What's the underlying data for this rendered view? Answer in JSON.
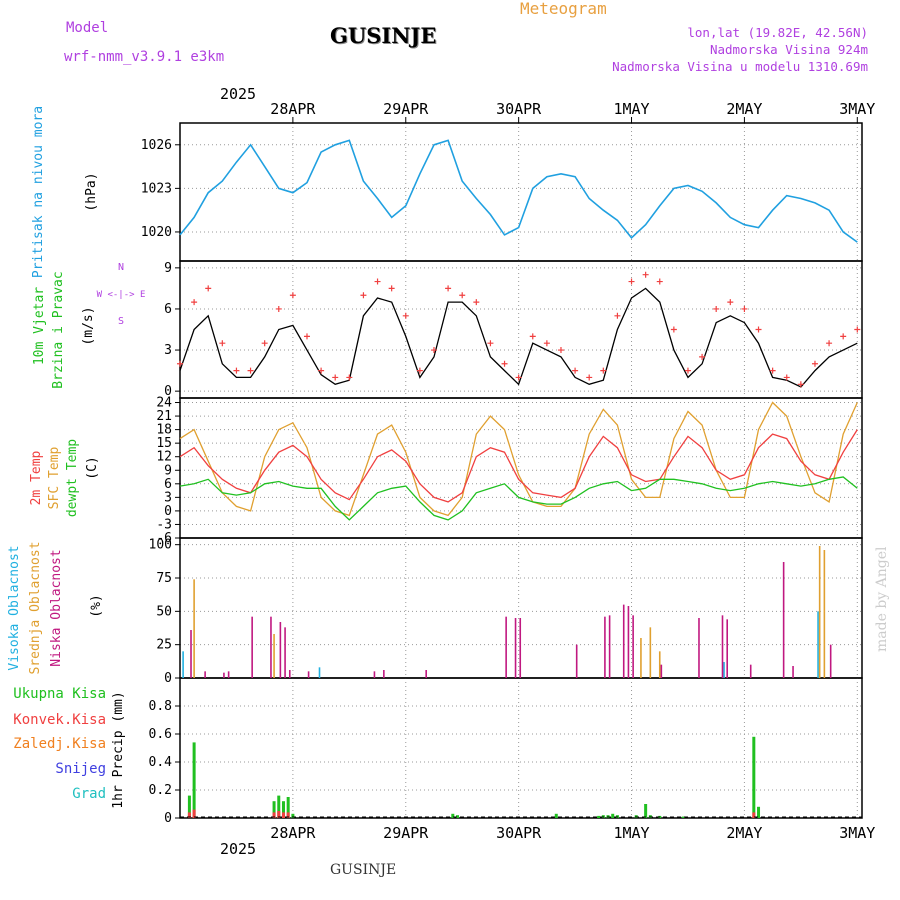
{
  "header": {
    "model_label": "Model",
    "model_name": "wrf-nmm_v3.9.1 e3km",
    "station": "GUSINJE",
    "title": "Meteogram",
    "lonlat": "lon,lat (19.82E, 42.56N)",
    "elevation": "Nadmorska Visina 924m",
    "model_elevation": "Nadmorska Visina u modelu 1310.69m"
  },
  "footer": {
    "station": "GUSINJE",
    "made_by": "made by Angel"
  },
  "colors": {
    "pressure": "#20a0e0",
    "temp2m": "#f04040",
    "sfc": "#e0a030",
    "dewpt": "#20c020",
    "high_cloud": "#20b0e0",
    "mid_cloud": "#e0a030",
    "low_cloud": "#c01880",
    "total_precip": "#20c020",
    "conv_precip": "#f04040",
    "frz_precip": "#f08020",
    "snow": "#4040e0",
    "hail": "#20c0c0",
    "wind_speed": "#000000",
    "gust": "#f04040"
  },
  "top_axis": {
    "year": "2025",
    "dates": [
      "28APR",
      "29APR",
      "30APR",
      "1MAY",
      "2MAY",
      "3MAY"
    ]
  },
  "bottom_axis": {
    "year": "2025",
    "dates": [
      "28APR",
      "29APR",
      "30APR",
      "1MAY",
      "2MAY",
      "3MAY"
    ]
  },
  "legend": {
    "pressure": [
      "Pritisak na nivou mora"
    ],
    "pressure_unit": "(hPa)",
    "wind": [
      "10m Vjetar",
      "Brzina i Pravac"
    ],
    "wind_unit": "(m/s)",
    "compass_ns": "N",
    "compass_s": "S",
    "compass_ew": "W <-|-> E",
    "temp": [
      {
        "text": "2m Temp",
        "series": "temp2m"
      },
      {
        "text": "SFC Temp",
        "series": "sfc"
      },
      {
        "text": "dewpt Temp",
        "series": "dewpt"
      }
    ],
    "temp_unit": "(C)",
    "cloud": [
      {
        "text": "Visoka Oblacnost",
        "series": "high_cloud"
      },
      {
        "text": "Srednja Oblacnost",
        "series": "mid_cloud"
      },
      {
        "text": "Niska Oblacnost",
        "series": "low_cloud"
      }
    ],
    "cloud_unit": "(%)",
    "precip": [
      {
        "text": "Ukupna Kisa",
        "series": "total_precip"
      },
      {
        "text": "Konvek.Kisa",
        "series": "conv_precip"
      },
      {
        "text": "Zaledj.Kisa",
        "series": "frz_precip"
      },
      {
        "text": "Snijeg",
        "series": "snow"
      },
      {
        "text": "Grad",
        "series": "hail"
      }
    ],
    "precip_unit": "1hr Precip (mm)"
  },
  "chart_data": [
    {
      "type": "line",
      "x_unit": "hours from 28APR 00UTC",
      "xlim": [
        -12,
        133
      ],
      "ylim": [
        1018,
        1027.5
      ],
      "yticks": [
        1020,
        1023,
        1026
      ],
      "ylabel": "(hPa)",
      "series": [
        {
          "name": "Pritisak na nivou mora",
          "x": [
            -12,
            -9,
            -6,
            -3,
            0,
            3,
            6,
            9,
            12,
            15,
            18,
            21,
            24,
            27,
            30,
            33,
            36,
            39,
            42,
            45,
            48,
            51,
            54,
            57,
            60,
            63,
            66,
            69,
            72,
            75,
            78,
            81,
            84,
            87,
            90,
            93,
            96,
            99,
            102,
            105,
            108,
            111,
            114,
            117,
            120,
            123,
            126,
            129,
            132
          ],
          "values": [
            1019.8,
            1021,
            1022.7,
            1023.5,
            1024.8,
            1026.0,
            1024.5,
            1023.0,
            1022.7,
            1023.4,
            1025.5,
            1026.0,
            1026.3,
            1023.5,
            1022.3,
            1021.0,
            1021.8,
            1024.0,
            1026.0,
            1026.3,
            1023.5,
            1022.3,
            1021.2,
            1019.8,
            1020.3,
            1023.0,
            1023.8,
            1024.0,
            1023.8,
            1022.3,
            1021.5,
            1020.8,
            1019.6,
            1020.5,
            1021.8,
            1023.0,
            1023.2,
            1022.8,
            1022.0,
            1021.0,
            1020.5,
            1020.3,
            1021.5,
            1022.5,
            1022.3,
            1022.0,
            1021.5,
            1020.0,
            1019.3
          ]
        }
      ]
    },
    {
      "type": "line",
      "x_unit": "hours from 28APR 00UTC",
      "xlim": [
        -12,
        133
      ],
      "ylim": [
        -0.5,
        9.5
      ],
      "yticks": [
        0,
        3,
        6,
        9
      ],
      "ylabel": "(m/s)",
      "series": [
        {
          "name": "wind speed",
          "x": [
            -12,
            -9,
            -6,
            -3,
            0,
            3,
            6,
            9,
            12,
            15,
            18,
            21,
            24,
            27,
            30,
            33,
            36,
            39,
            42,
            45,
            48,
            51,
            54,
            57,
            60,
            63,
            66,
            69,
            72,
            75,
            78,
            81,
            84,
            87,
            90,
            93,
            96,
            99,
            102,
            105,
            108,
            111,
            114,
            117,
            120,
            123,
            126,
            129,
            132
          ],
          "values": [
            1.5,
            4.5,
            5.5,
            2.0,
            1.0,
            1.0,
            2.5,
            4.5,
            4.8,
            3.0,
            1.2,
            0.5,
            0.8,
            5.5,
            6.8,
            6.5,
            4.0,
            1.0,
            2.5,
            6.5,
            6.5,
            5.5,
            2.5,
            1.5,
            0.5,
            3.5,
            3.0,
            2.5,
            1.0,
            0.5,
            0.8,
            4.5,
            6.8,
            7.5,
            6.5,
            3.0,
            1.0,
            2.0,
            5.0,
            5.5,
            5.0,
            3.5,
            1.0,
            0.8,
            0.3,
            1.5,
            2.5,
            3.0,
            3.5
          ]
        },
        {
          "name": "gust",
          "x": [
            -12,
            -9,
            -6,
            -3,
            0,
            3,
            6,
            9,
            12,
            15,
            18,
            21,
            24,
            27,
            30,
            33,
            36,
            39,
            42,
            45,
            48,
            51,
            54,
            57,
            60,
            63,
            66,
            69,
            72,
            75,
            78,
            81,
            84,
            87,
            90,
            93,
            96,
            99,
            102,
            105,
            108,
            111,
            114,
            117,
            120,
            123,
            126,
            129,
            132
          ],
          "values": [
            2.0,
            6.5,
            7.5,
            3.5,
            1.5,
            1.5,
            3.5,
            6.0,
            7.0,
            4.0,
            1.5,
            1.0,
            1.0,
            7.0,
            8.0,
            7.5,
            5.5,
            1.5,
            3.0,
            7.5,
            7.0,
            6.5,
            3.5,
            2.0,
            1.0,
            4.0,
            3.5,
            3.0,
            1.5,
            1.0,
            1.5,
            5.5,
            8.0,
            8.5,
            8.0,
            4.5,
            1.5,
            2.5,
            6.0,
            6.5,
            6.0,
            4.5,
            1.5,
            1.0,
            0.5,
            2.0,
            3.5,
            4.0,
            4.5
          ]
        }
      ]
    },
    {
      "type": "line",
      "x_unit": "hours from 28APR 00UTC",
      "xlim": [
        -12,
        133
      ],
      "ylim": [
        -6,
        25
      ],
      "yticks": [
        -6,
        -3,
        0,
        3,
        6,
        9,
        12,
        15,
        18,
        21,
        24
      ],
      "ylabel": "(C)",
      "series": [
        {
          "name": "2m Temp",
          "x": [
            -12,
            -9,
            -6,
            -3,
            0,
            3,
            6,
            9,
            12,
            15,
            18,
            21,
            24,
            27,
            30,
            33,
            36,
            39,
            42,
            45,
            48,
            51,
            54,
            57,
            60,
            63,
            66,
            69,
            72,
            75,
            78,
            81,
            84,
            87,
            90,
            93,
            96,
            99,
            102,
            105,
            108,
            111,
            114,
            117,
            120,
            123,
            126,
            129,
            132
          ],
          "values": [
            12,
            14,
            10,
            7,
            5,
            4,
            9,
            13,
            14.5,
            12,
            7,
            4,
            2.5,
            7,
            12,
            13.5,
            11,
            6,
            3,
            2,
            4,
            12,
            14,
            13,
            7,
            4,
            3.5,
            3,
            5,
            12,
            16.5,
            14,
            8,
            6.5,
            7,
            12,
            16.5,
            14,
            9,
            7,
            8,
            14,
            17,
            16,
            11,
            8,
            7,
            13,
            18
          ]
        },
        {
          "name": "SFC Temp",
          "x": [
            -12,
            -9,
            -6,
            -3,
            0,
            3,
            6,
            9,
            12,
            15,
            18,
            21,
            24,
            27,
            30,
            33,
            36,
            39,
            42,
            45,
            48,
            51,
            54,
            57,
            60,
            63,
            66,
            69,
            72,
            75,
            78,
            81,
            84,
            87,
            90,
            93,
            96,
            99,
            102,
            105,
            108,
            111,
            114,
            117,
            120,
            123,
            126,
            129,
            132
          ],
          "values": [
            16,
            18,
            11,
            4,
            1,
            0,
            12,
            18,
            19.5,
            14,
            3,
            0,
            -1,
            8,
            17,
            19,
            13,
            3,
            0,
            -1,
            3,
            17,
            21,
            18,
            8,
            2,
            1,
            1,
            5,
            17,
            22.5,
            19,
            7,
            3,
            3,
            16,
            22,
            19,
            9,
            3,
            3,
            18,
            24,
            21,
            12,
            4,
            2,
            17,
            24
          ]
        },
        {
          "name": "dewpt Temp",
          "x": [
            -12,
            -9,
            -6,
            -3,
            0,
            3,
            6,
            9,
            12,
            15,
            18,
            21,
            24,
            27,
            30,
            33,
            36,
            39,
            42,
            45,
            48,
            51,
            54,
            57,
            60,
            63,
            66,
            69,
            72,
            75,
            78,
            81,
            84,
            87,
            90,
            93,
            96,
            99,
            102,
            105,
            108,
            111,
            114,
            117,
            120,
            123,
            126,
            129,
            132
          ],
          "values": [
            5.5,
            6,
            7,
            4,
            3.5,
            4,
            6,
            6.5,
            5.5,
            5,
            5,
            1,
            -2,
            1,
            4,
            5,
            5.5,
            2,
            -1,
            -2,
            0,
            4,
            5,
            6,
            3,
            2,
            1.5,
            1.5,
            3,
            5,
            6,
            6.5,
            4.5,
            5,
            7,
            7,
            6.5,
            6,
            5,
            4.5,
            5,
            6,
            6.5,
            6,
            5.5,
            6,
            7,
            7.5,
            5
          ]
        }
      ]
    },
    {
      "type": "bar",
      "x_unit": "hours from 28APR 00UTC",
      "xlim": [
        -12,
        133
      ],
      "ylim": [
        0,
        105
      ],
      "yticks": [
        0,
        25,
        50,
        75,
        100
      ],
      "ylabel": "(%)",
      "series": [
        {
          "name": "Visoka Oblacnost",
          "x": [
            -11,
            18,
            104,
            124
          ],
          "values": [
            20,
            8,
            12,
            50
          ]
        },
        {
          "name": "Srednja Oblacnost",
          "x": [
            -9,
            8,
            86,
            88,
            90,
            124,
            125
          ],
          "values": [
            74,
            33,
            30,
            38,
            20,
            99,
            96
          ]
        },
        {
          "name": "Niska Oblacnost",
          "x": [
            -10,
            -7,
            -3,
            -2,
            3,
            7,
            9,
            10,
            11,
            15,
            29,
            31,
            40,
            57,
            59,
            60,
            72,
            78,
            79,
            82,
            83,
            84,
            90,
            98,
            103,
            104,
            109,
            116,
            118,
            126
          ],
          "values": [
            36,
            5,
            4,
            5,
            46,
            46,
            42,
            38,
            6,
            5,
            5,
            6,
            6,
            46,
            45,
            45,
            25,
            46,
            47,
            55,
            54,
            47,
            10,
            45,
            47,
            44,
            10,
            87,
            9,
            25
          ]
        }
      ]
    },
    {
      "type": "bar",
      "x_unit": "hours from 28APR 00UTC",
      "xlim": [
        -12,
        133
      ],
      "ylim": [
        0,
        1.0
      ],
      "yticks": [
        0,
        0.2,
        0.4,
        0.6,
        0.8
      ],
      "ylabel": "1hr Precip (mm)",
      "series": [
        {
          "name": "Ukupna Kisa",
          "x": [
            -10,
            -9,
            8,
            9,
            10,
            11,
            12,
            46,
            47,
            68,
            77,
            78,
            79,
            80,
            81,
            85,
            87,
            88,
            90,
            95,
            110,
            111
          ],
          "values": [
            0.16,
            0.54,
            0.12,
            0.16,
            0.12,
            0.15,
            0.03,
            0.03,
            0.02,
            0.03,
            0.015,
            0.02,
            0.02,
            0.03,
            0.02,
            0.02,
            0.1,
            0.02,
            0.015,
            0.01,
            0.58,
            0.08
          ]
        },
        {
          "name": "Konvek.Kisa",
          "x": [
            -10,
            -9,
            8,
            9,
            10,
            11,
            110
          ],
          "values": [
            0.04,
            0.06,
            0.04,
            0.05,
            0.04,
            0.04,
            0.04
          ]
        }
      ]
    }
  ]
}
